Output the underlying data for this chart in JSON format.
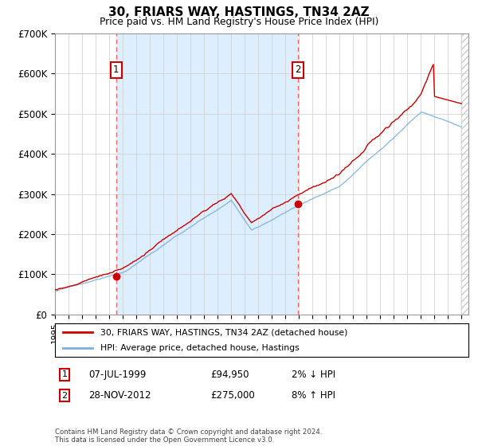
{
  "title": "30, FRIARS WAY, HASTINGS, TN34 2AZ",
  "subtitle": "Price paid vs. HM Land Registry's House Price Index (HPI)",
  "x_start_year": 1995,
  "x_end_year": 2025,
  "ylim": [
    0,
    700000
  ],
  "yticks": [
    0,
    100000,
    200000,
    300000,
    400000,
    500000,
    600000,
    700000
  ],
  "ytick_labels": [
    "£0",
    "£100K",
    "£200K",
    "£300K",
    "£400K",
    "£500K",
    "£600K",
    "£700K"
  ],
  "sale1_year": 1999.52,
  "sale1_price": 94950,
  "sale2_year": 2012.91,
  "sale2_price": 275000,
  "vline1_year": 1999.52,
  "vline2_year": 2012.91,
  "hpi_line_color": "#7ab0e0",
  "price_line_color": "#cc0000",
  "marker_color": "#cc0000",
  "vline_color": "#ff6666",
  "grid_color": "#cccccc",
  "background_color": "#ffffff",
  "shade_between_color": "#ddeeff",
  "legend_label_price": "30, FRIARS WAY, HASTINGS, TN34 2AZ (detached house)",
  "legend_label_hpi": "HPI: Average price, detached house, Hastings",
  "annotation1_label": "1",
  "annotation1_date": "07-JUL-1999",
  "annotation1_price": "£94,950",
  "annotation1_hpi": "2% ↓ HPI",
  "annotation2_label": "2",
  "annotation2_date": "28-NOV-2012",
  "annotation2_price": "£275,000",
  "annotation2_hpi": "8% ↑ HPI",
  "footnote": "Contains HM Land Registry data © Crown copyright and database right 2024.\nThis data is licensed under the Open Government Licence v3.0."
}
